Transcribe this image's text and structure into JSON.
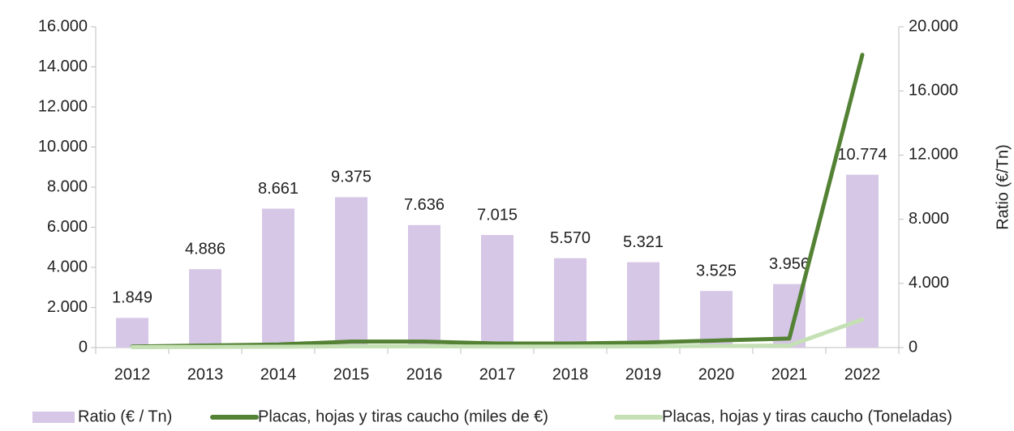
{
  "chart_data": {
    "type": "bar",
    "categories": [
      "2012",
      "2013",
      "2014",
      "2015",
      "2016",
      "2017",
      "2018",
      "2019",
      "2020",
      "2021",
      "2022"
    ],
    "series": [
      {
        "name": "Ratio (€ / Tn)",
        "type": "bar",
        "axis": "y2",
        "color": "#d6c7e6",
        "values": [
          1849,
          4886,
          8661,
          9375,
          7636,
          7015,
          5570,
          5321,
          3525,
          3956,
          10774
        ],
        "value_labels": [
          "1.849",
          "4.886",
          "8.661",
          "9.375",
          "7.636",
          "7.015",
          "5.570",
          "5.321",
          "3.525",
          "3.956",
          "10.774"
        ]
      },
      {
        "name": "Placas, hojas y tiras caucho (miles de €)",
        "type": "line",
        "color": "#548235",
        "values": [
          50,
          100,
          150,
          300,
          300,
          200,
          200,
          250,
          350,
          450,
          14600
        ]
      },
      {
        "name": "Placas, hojas y tiras caucho (Toneladas)",
        "type": "line",
        "color": "#c5e0b4",
        "values": [
          20,
          30,
          40,
          60,
          60,
          50,
          50,
          60,
          80,
          100,
          1400
        ]
      }
    ],
    "ylim": [
      0,
      16000
    ],
    "yticks": [
      0,
      {
        "value": 2000,
        "label": "2.000"
      },
      {
        "value": 4000,
        "label": "4.000"
      },
      {
        "value": 6000,
        "label": "6.000"
      },
      {
        "value": 8000,
        "label": "8.000"
      },
      {
        "value": 10000,
        "label": "10.000"
      },
      {
        "value": 12000,
        "label": "12.000"
      },
      {
        "value": 14000,
        "label": "14.000"
      },
      {
        "value": 16000,
        "label": "16.000"
      }
    ],
    "y2lim": [
      0,
      20000
    ],
    "y2ticks": [
      0,
      {
        "value": 4000,
        "label": "4.000"
      },
      {
        "value": 8000,
        "label": "8.000"
      },
      {
        "value": 12000,
        "label": "12.000"
      },
      {
        "value": 16000,
        "label": "16.000"
      },
      {
        "value": 20000,
        "label": "20.000"
      }
    ],
    "y2label": "Ratio (€/Tn)",
    "legend": "bottom"
  }
}
